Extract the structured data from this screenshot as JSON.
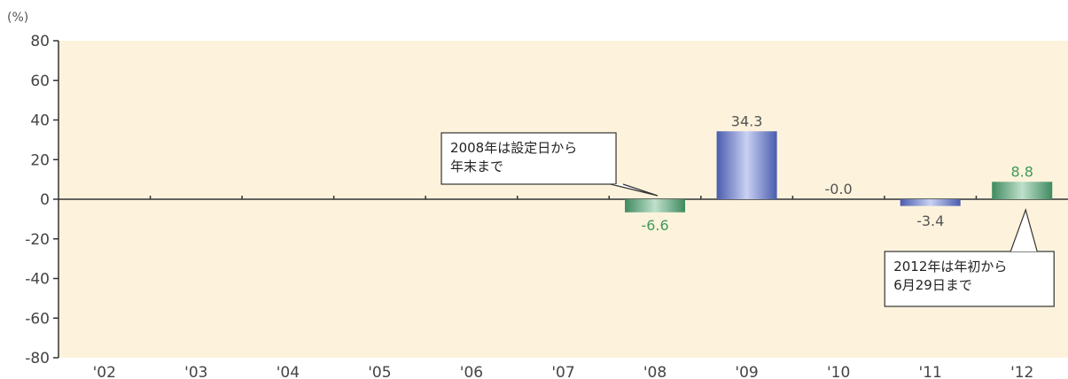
{
  "chart_data": {
    "type": "bar",
    "unit_label": "(%)",
    "categories": [
      "'02",
      "'03",
      "'04",
      "'05",
      "'06",
      "'07",
      "'08",
      "'09",
      "'10",
      "'11",
      "'12"
    ],
    "values": [
      null,
      null,
      null,
      null,
      null,
      null,
      -6.6,
      34.3,
      -0.0,
      -3.4,
      8.8
    ],
    "data_labels": [
      "",
      "",
      "",
      "",
      "",
      "",
      "-6.6",
      "34.3",
      "-0.0",
      "-3.4",
      "8.8"
    ],
    "bar_styles": [
      "",
      "",
      "",
      "",
      "",
      "",
      "green",
      "blue",
      "blue",
      "blue",
      "green"
    ],
    "ylim": [
      -80,
      80
    ],
    "yticks": [
      80,
      60,
      40,
      20,
      0,
      -20,
      -40,
      -60,
      -80
    ],
    "colors": {
      "plot_background": "#fdf3dc",
      "blue_bar": "#7f8fd6",
      "green_bar": "#6fae8a",
      "green_label": "#3f9a5a",
      "axis": "#333333"
    },
    "annotations": [
      {
        "lines": [
          "2008年は設定日から",
          "年末まで"
        ],
        "category": "'08"
      },
      {
        "lines": [
          "2012年は年初から",
          "6月29日まで"
        ],
        "category": "'12"
      }
    ]
  }
}
